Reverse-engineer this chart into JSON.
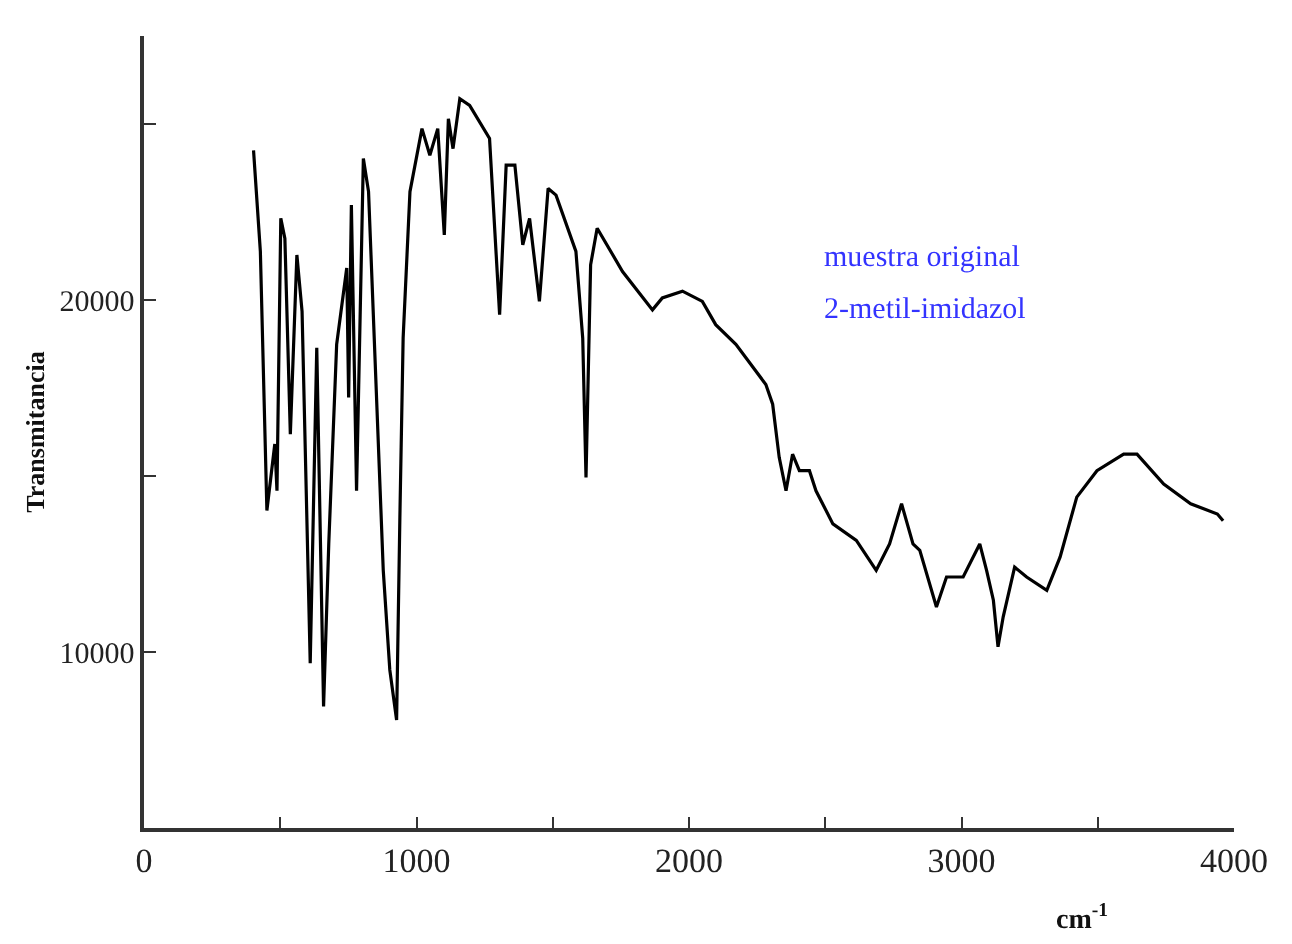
{
  "chart_data": {
    "type": "line",
    "xlabel": "cm$^{-1}$",
    "ylabel": "Transmitancia",
    "annotations": [
      "muestra original",
      "2-metil-imidazol"
    ],
    "xlim": [
      0,
      4000
    ],
    "ylim": [
      5000,
      27500
    ],
    "xticks": [
      0,
      {
        "value": 500,
        "label": null
      },
      1000,
      {
        "value": 1500,
        "label": null
      },
      2000,
      {
        "value": 2500,
        "label": null
      },
      3000,
      {
        "value": 3500,
        "label": null
      },
      4000
    ],
    "yticks": [
      10000,
      {
        "value": 15000,
        "label": null
      },
      20000,
      {
        "value": 25000,
        "label": null
      }
    ],
    "marker": "none",
    "line_style": "solid",
    "series": [
      {
        "color": "#000000",
        "x": [
          402,
          427,
          451,
          480,
          488,
          502,
          517,
          537,
          561,
          580,
          610,
          634,
          659,
          678,
          707,
          744,
          751,
          761,
          780,
          805,
          824,
          878,
          902,
          927,
          939,
          951,
          976,
          1020,
          1049,
          1078,
          1102,
          1117,
          1134,
          1159,
          1195,
          1268,
          1305,
          1329,
          1361,
          1390,
          1415,
          1451,
          1483,
          1512,
          1585,
          1610,
          1622,
          1639,
          1663,
          1756,
          1866,
          1902,
          1976,
          2049,
          2098,
          2172,
          2282,
          2307,
          2331,
          2356,
          2380,
          2405,
          2442,
          2466,
          2528,
          2614,
          2687,
          2736,
          2780,
          2822,
          2847,
          2908,
          2945,
          3006,
          3067,
          3092,
          3117,
          3134,
          3153,
          3195,
          3239,
          3313,
          3362,
          3423,
          3497,
          3595,
          3644,
          3742,
          3841,
          3939,
          3960
        ],
        "values": [
          24250,
          21380,
          14020,
          15910,
          14580,
          22320,
          21750,
          16190,
          21280,
          19680,
          9680,
          18640,
          8450,
          13070,
          18740,
          20910,
          17230,
          22700,
          14580,
          24020,
          23080,
          12320,
          9490,
          8070,
          13830,
          18920,
          23080,
          24870,
          24110,
          24870,
          21850,
          25150,
          24300,
          25720,
          25530,
          24590,
          19580,
          23830,
          23830,
          21570,
          22320,
          19960,
          23170,
          22980,
          21380,
          18920,
          14960,
          21000,
          22040,
          20810,
          19720,
          20060,
          20250,
          19960,
          19300,
          18740,
          17600,
          17040,
          15530,
          14580,
          15620,
          15150,
          15150,
          14580,
          13640,
          13170,
          12320,
          13070,
          14210,
          13070,
          12890,
          11280,
          12130,
          12130,
          13070,
          12320,
          11470,
          10150,
          11000,
          12410,
          12130,
          11750,
          12700,
          14400,
          15150,
          15620,
          15620,
          14770,
          14210,
          13920,
          13730
        ]
      }
    ]
  }
}
